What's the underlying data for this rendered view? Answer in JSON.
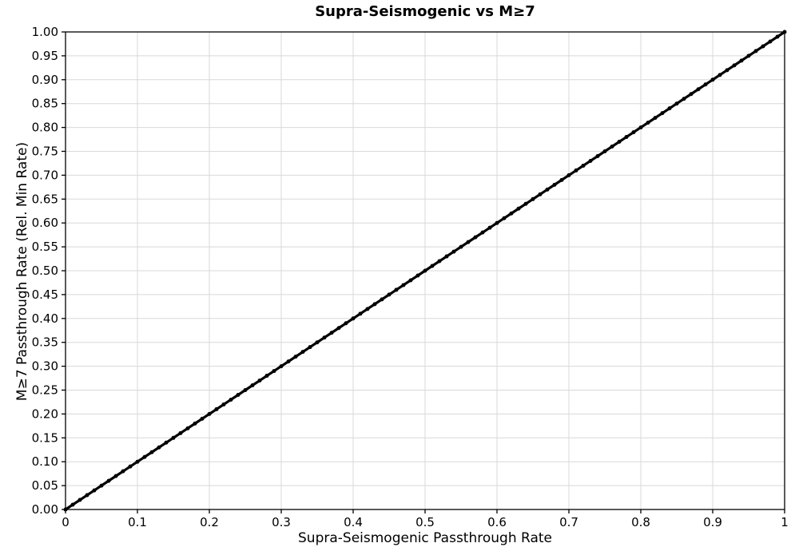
{
  "chart": {
    "title": "Supra-Seismogenic vs M≥7",
    "xlabel": "Supra-Seismogenic Passthrough Rate",
    "ylabel": "M≥7 Passthrough Rate (Rel. Min Rate)"
  },
  "chart_data": {
    "type": "scatter",
    "title": "Supra-Seismogenic vs M≥7",
    "xlabel": "Supra-Seismogenic Passthrough Rate",
    "ylabel": "M≥7 Passthrough Rate (Rel. Min Rate)",
    "xlim": [
      0,
      1
    ],
    "ylim": [
      0,
      1
    ],
    "xticks": [
      0,
      0.1,
      0.2,
      0.3,
      0.4,
      0.5,
      0.6,
      0.7,
      0.8,
      0.9,
      1
    ],
    "xtick_labels": [
      "0",
      "0.1",
      "0.2",
      "0.3",
      "0.4",
      "0.5",
      "0.6",
      "0.7",
      "0.8",
      "0.9",
      "1"
    ],
    "yticks": [
      0,
      0.05,
      0.1,
      0.15,
      0.2,
      0.25,
      0.3,
      0.35,
      0.4,
      0.45,
      0.5,
      0.55,
      0.6,
      0.65,
      0.7,
      0.75,
      0.8,
      0.85,
      0.9,
      0.95,
      1
    ],
    "ytick_labels": [
      "0.00",
      "0.05",
      "0.10",
      "0.15",
      "0.20",
      "0.25",
      "0.30",
      "0.35",
      "0.40",
      "0.45",
      "0.50",
      "0.55",
      "0.60",
      "0.65",
      "0.70",
      "0.75",
      "0.80",
      "0.85",
      "0.90",
      "0.95",
      "1.00"
    ],
    "grid": true,
    "legend": false,
    "marker_color": "#000000",
    "grid_color": "#d8d8d8",
    "relationship": "all points lie on the identity line y = x from (0,0) to (1,1)",
    "series": [
      {
        "name": "M≥7 passthrough vs Supra-Seismogenic passthrough",
        "marker": "circle",
        "x": [
          0,
          0.01,
          0.02,
          0.03,
          0.04,
          0.05,
          0.06,
          0.07,
          0.08,
          0.09,
          0.1,
          0.11,
          0.12,
          0.13,
          0.14,
          0.15,
          0.16,
          0.17,
          0.18,
          0.19,
          0.2,
          0.21,
          0.22,
          0.23,
          0.24,
          0.25,
          0.26,
          0.27,
          0.28,
          0.29,
          0.3,
          0.31,
          0.32,
          0.33,
          0.34,
          0.35,
          0.36,
          0.37,
          0.38,
          0.39,
          0.4,
          0.41,
          0.42,
          0.43,
          0.44,
          0.45,
          0.46,
          0.47,
          0.48,
          0.49,
          0.5,
          0.51,
          0.52,
          0.53,
          0.54,
          0.55,
          0.56,
          0.57,
          0.58,
          0.59,
          0.6,
          0.61,
          0.62,
          0.63,
          0.64,
          0.65,
          0.66,
          0.67,
          0.68,
          0.69,
          0.7,
          0.71,
          0.72,
          0.73,
          0.74,
          0.75,
          0.76,
          0.77,
          0.78,
          0.79,
          0.8,
          0.81,
          0.82,
          0.83,
          0.84,
          0.85,
          0.86,
          0.87,
          0.88,
          0.89,
          0.9,
          0.91,
          0.92,
          0.93,
          0.94,
          0.95,
          0.96,
          0.97,
          0.98,
          0.99,
          1
        ],
        "y": [
          0,
          0.01,
          0.02,
          0.03,
          0.04,
          0.05,
          0.06,
          0.07,
          0.08,
          0.09,
          0.1,
          0.11,
          0.12,
          0.13,
          0.14,
          0.15,
          0.16,
          0.17,
          0.18,
          0.19,
          0.2,
          0.21,
          0.22,
          0.23,
          0.24,
          0.25,
          0.26,
          0.27,
          0.28,
          0.29,
          0.3,
          0.31,
          0.32,
          0.33,
          0.34,
          0.35,
          0.36,
          0.37,
          0.38,
          0.39,
          0.4,
          0.41,
          0.42,
          0.43,
          0.44,
          0.45,
          0.46,
          0.47,
          0.48,
          0.49,
          0.5,
          0.51,
          0.52,
          0.53,
          0.54,
          0.55,
          0.56,
          0.57,
          0.58,
          0.59,
          0.6,
          0.61,
          0.62,
          0.63,
          0.64,
          0.65,
          0.66,
          0.67,
          0.68,
          0.69,
          0.7,
          0.71,
          0.72,
          0.73,
          0.74,
          0.75,
          0.76,
          0.77,
          0.78,
          0.79,
          0.8,
          0.81,
          0.82,
          0.83,
          0.84,
          0.85,
          0.86,
          0.87,
          0.88,
          0.89,
          0.9,
          0.91,
          0.92,
          0.93,
          0.94,
          0.95,
          0.96,
          0.97,
          0.98,
          0.99,
          1
        ]
      }
    ]
  }
}
